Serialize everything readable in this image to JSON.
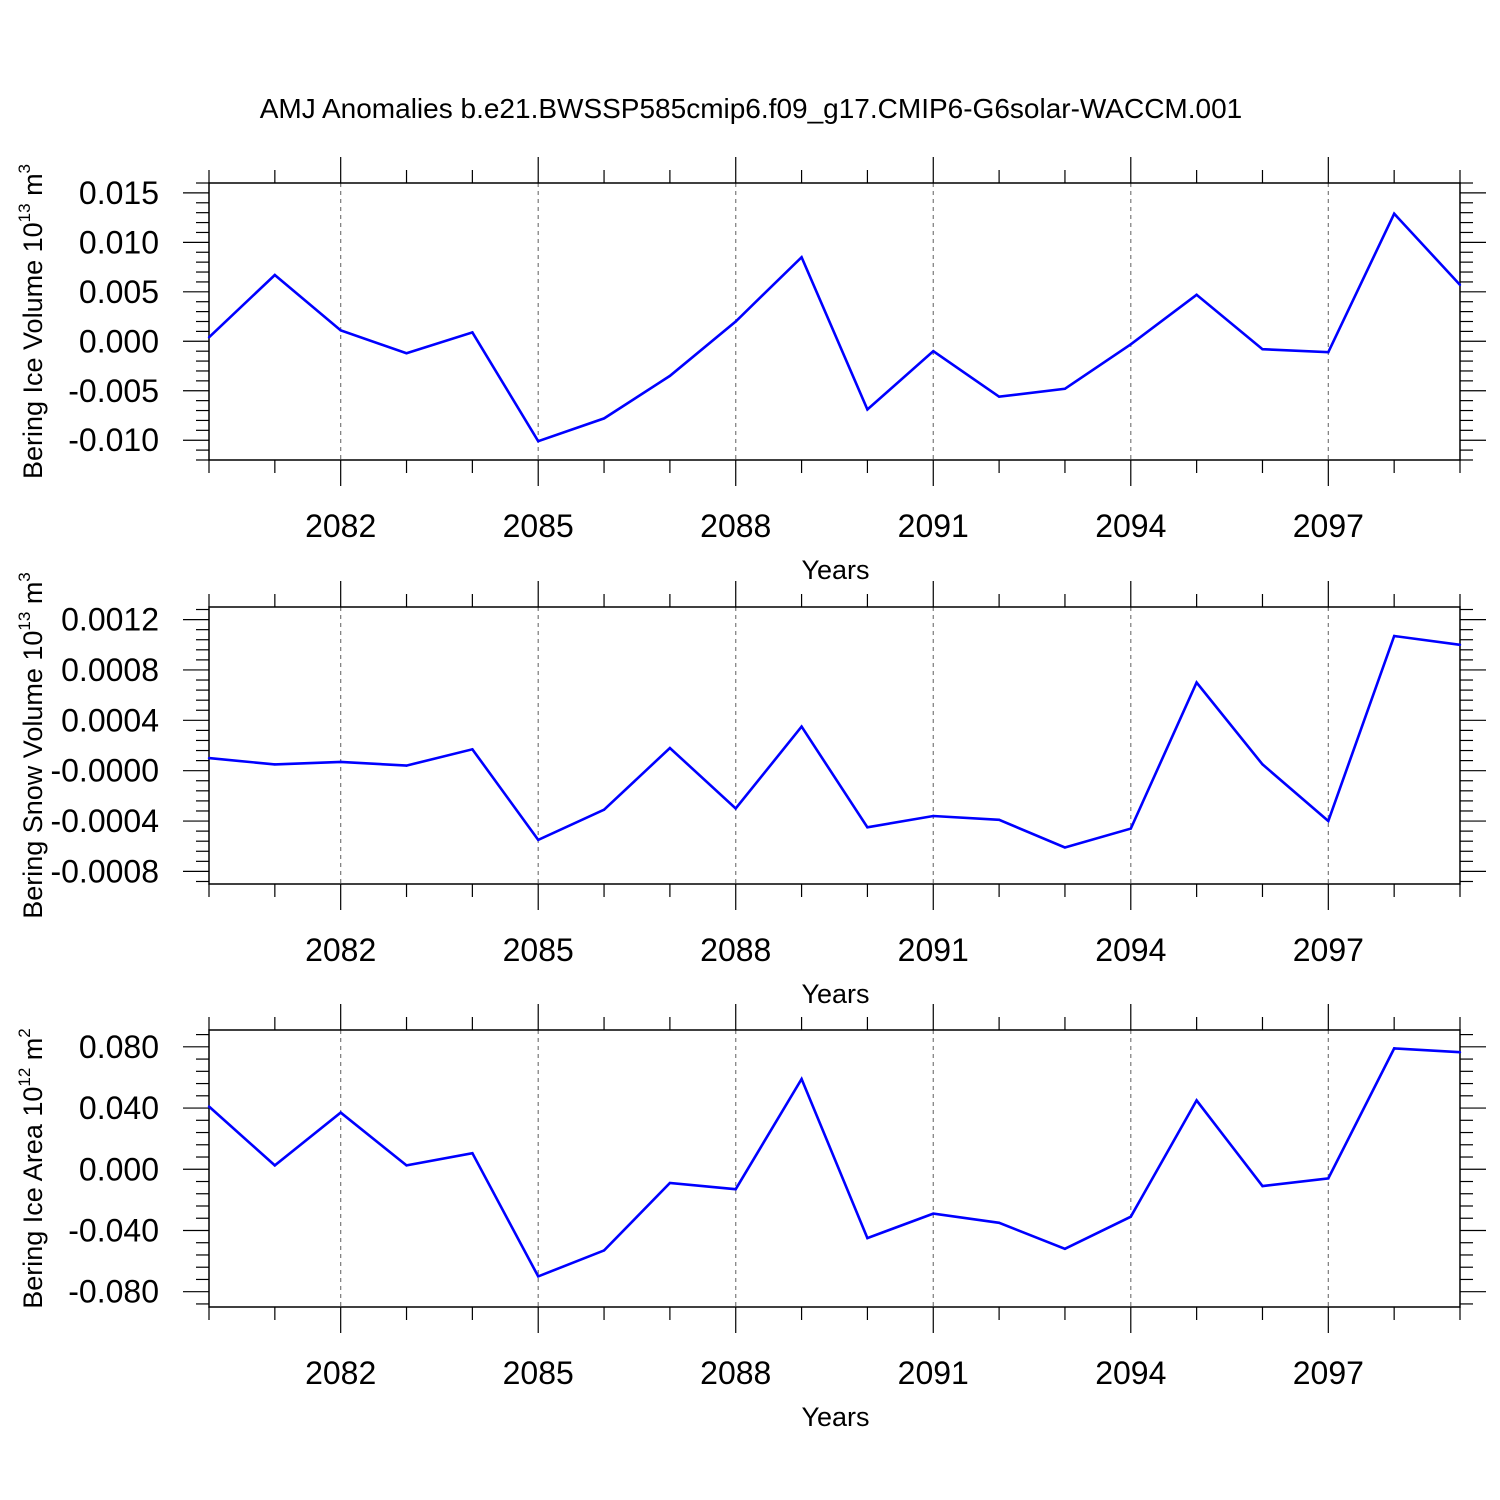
{
  "chart_data": {
    "title": "AMJ Anomalies b.e21.BWSSP585cmip6.f09_g17.CMIP6-G6solar-WACCM.001",
    "panels": [
      {
        "type": "line",
        "ylabel_main": "Bering Ice Volume 10",
        "ylabel_exponent": "13",
        "ylabel_unit_base": " m",
        "ylabel_unit_exponent": "3",
        "xlabel": "Years",
        "xlim": [
          2080,
          2099
        ],
        "ylim": [
          -0.012,
          0.016
        ],
        "x_ticks": [
          2082,
          2085,
          2088,
          2091,
          2094,
          2097
        ],
        "x_tick_labels": [
          "2082",
          "2085",
          "2088",
          "2091",
          "2094",
          "2097"
        ],
        "y_ticks": [
          0.015,
          0.01,
          0.005,
          0.0,
          -0.005,
          -0.01
        ],
        "y_tick_labels": [
          "0.015",
          "0.010",
          "0.005",
          "0.000",
          "-0.005",
          "-0.010"
        ],
        "line_color": "#0000ff",
        "x": [
          2080,
          2081,
          2082,
          2083,
          2084,
          2085,
          2086,
          2087,
          2088,
          2089,
          2090,
          2091,
          2092,
          2093,
          2094,
          2095,
          2096,
          2097,
          2098,
          2099
        ],
        "values": [
          0.0004,
          0.0067,
          0.0011,
          -0.0012,
          0.0009,
          -0.0101,
          -0.0078,
          -0.0035,
          0.002,
          0.0085,
          -0.0069,
          -0.001,
          -0.0056,
          -0.0048,
          -0.0003,
          0.0047,
          -0.0008,
          -0.0011,
          0.0129,
          0.0057
        ]
      },
      {
        "type": "line",
        "ylabel_main": "Bering Snow Volume 10",
        "ylabel_exponent": "13",
        "ylabel_unit_base": " m",
        "ylabel_unit_exponent": "3",
        "xlabel": "Years",
        "xlim": [
          2080,
          2099
        ],
        "ylim": [
          -0.0009,
          0.0013
        ],
        "x_ticks": [
          2082,
          2085,
          2088,
          2091,
          2094,
          2097
        ],
        "x_tick_labels": [
          "2082",
          "2085",
          "2088",
          "2091",
          "2094",
          "2097"
        ],
        "y_ticks": [
          0.0012,
          0.0008,
          0.0004,
          0.0,
          -0.0004,
          -0.0008
        ],
        "y_tick_labels": [
          "0.0012",
          "0.0008",
          "0.0004",
          "-0.0000",
          "-0.0004",
          "-0.0008"
        ],
        "line_color": "#0000ff",
        "x": [
          2080,
          2081,
          2082,
          2083,
          2084,
          2085,
          2086,
          2087,
          2088,
          2089,
          2090,
          2091,
          2092,
          2093,
          2094,
          2095,
          2096,
          2097,
          2098,
          2099
        ],
        "values": [
          0.0001,
          5e-05,
          7e-05,
          4e-05,
          0.00017,
          -0.00055,
          -0.00031,
          0.00018,
          -0.0003,
          0.00035,
          -0.00045,
          -0.00036,
          -0.00039,
          -0.00061,
          -0.00046,
          0.0007,
          5e-05,
          -0.0004,
          0.00107,
          0.001
        ]
      },
      {
        "type": "line",
        "ylabel_main": "Bering Ice Area 10",
        "ylabel_exponent": "12",
        "ylabel_unit_base": " m",
        "ylabel_unit_exponent": "2",
        "xlabel": "Years",
        "xlim": [
          2080,
          2099
        ],
        "ylim": [
          -0.09,
          0.091
        ],
        "x_ticks": [
          2082,
          2085,
          2088,
          2091,
          2094,
          2097
        ],
        "x_tick_labels": [
          "2082",
          "2085",
          "2088",
          "2091",
          "2094",
          "2097"
        ],
        "y_ticks": [
          0.08,
          0.04,
          0.0,
          -0.04,
          -0.08
        ],
        "y_tick_labels": [
          "0.080",
          "0.040",
          "0.000",
          "-0.040",
          "-0.080"
        ],
        "line_color": "#0000ff",
        "x": [
          2080,
          2081,
          2082,
          2083,
          2084,
          2085,
          2086,
          2087,
          2088,
          2089,
          2090,
          2091,
          2092,
          2093,
          2094,
          2095,
          2096,
          2097,
          2098,
          2099
        ],
        "values": [
          0.041,
          0.0025,
          0.037,
          0.0025,
          0.0105,
          -0.07,
          -0.053,
          -0.009,
          -0.013,
          0.059,
          -0.045,
          -0.029,
          -0.035,
          -0.052,
          -0.031,
          0.045,
          -0.011,
          -0.006,
          0.079,
          0.0765
        ]
      }
    ]
  }
}
